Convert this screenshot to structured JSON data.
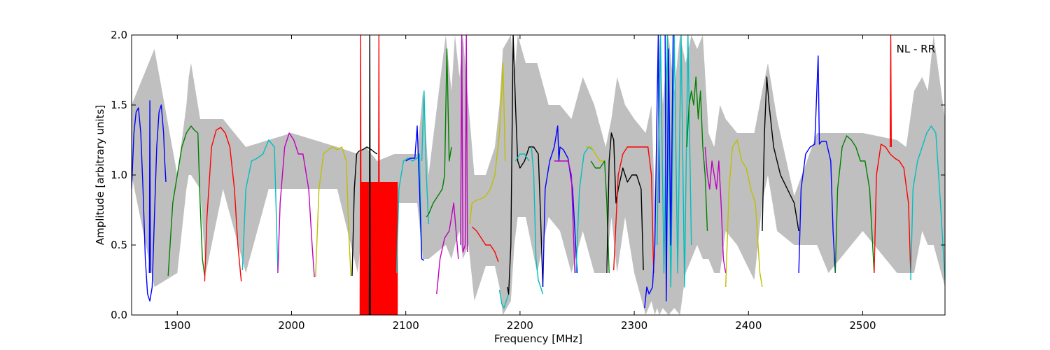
{
  "chart_data": {
    "type": "line",
    "annotation": "NL - RR",
    "xlabel": "Frequency [MHz]",
    "ylabel": "Amplitude [arbitrary units]",
    "xlim": [
      1860,
      2572
    ],
    "ylim": [
      0,
      2.0
    ],
    "xticks": [
      1900,
      2000,
      2100,
      2200,
      2300,
      2400,
      2500
    ],
    "xtick_labels": [
      "1900",
      "2000",
      "2100",
      "2200",
      "2300",
      "2400",
      "2500"
    ],
    "yticks": [
      0.0,
      0.5,
      1.0,
      1.5,
      2.0
    ],
    "ytick_labels": [
      "0.0",
      "0.5",
      "1.0",
      "1.5",
      "2.0"
    ],
    "grid": false,
    "colors": {
      "background_band": "#bfbfbf",
      "blue": "#0000ff",
      "green": "#008000",
      "red": "#ff0000",
      "cyan": "#00bfbf",
      "magenta": "#bf00bf",
      "yellow": "#bfbf00",
      "black": "#000000"
    },
    "background_band": {
      "color": "#bfbfbf",
      "x": [
        1860,
        1880,
        1900,
        1908,
        1910,
        1912,
        1920,
        1925,
        1940,
        1960,
        1980,
        2000,
        2040,
        2058,
        2065,
        2075,
        2090,
        2100,
        2110,
        2115,
        2120,
        2135,
        2140,
        2143,
        2147,
        2150,
        2155,
        2160,
        2170,
        2178,
        2182,
        2185,
        2192,
        2195,
        2198,
        2205,
        2215,
        2225,
        2235,
        2245,
        2255,
        2265,
        2275,
        2280,
        2285,
        2292,
        2300,
        2310,
        2315,
        2318,
        2320,
        2322,
        2325,
        2330,
        2335,
        2340,
        2345,
        2350,
        2355,
        2360,
        2365,
        2370,
        2375,
        2380,
        2390,
        2405,
        2412,
        2417,
        2425,
        2440,
        2460,
        2470,
        2500,
        2530,
        2538,
        2545,
        2552,
        2557,
        2562,
        2572
      ],
      "upper": [
        1.5,
        1.9,
        1.0,
        1.5,
        1.7,
        1.8,
        1.4,
        1.4,
        1.4,
        1.2,
        1.25,
        1.3,
        1.2,
        1.15,
        1.2,
        1.1,
        1.15,
        1.15,
        1.15,
        1.6,
        1.0,
        2.0,
        1.6,
        2.0,
        1.7,
        2.0,
        1.5,
        1.0,
        1.0,
        1.2,
        1.5,
        1.9,
        2.0,
        1.7,
        2.0,
        1.8,
        1.8,
        1.5,
        1.5,
        1.4,
        1.7,
        1.5,
        1.2,
        1.4,
        1.7,
        1.5,
        1.4,
        1.3,
        1.5,
        0.8,
        1.2,
        2.0,
        1.5,
        2.0,
        1.6,
        2.0,
        1.8,
        2.0,
        1.9,
        2.0,
        1.3,
        1.2,
        1.5,
        1.4,
        1.3,
        1.3,
        1.6,
        1.8,
        1.4,
        0.85,
        1.3,
        1.3,
        1.3,
        1.25,
        1.2,
        1.6,
        1.7,
        1.6,
        2.0,
        1.4
      ],
      "lower": [
        1.0,
        0.2,
        0.3,
        0.9,
        1.0,
        1.0,
        0.9,
        0.3,
        0.9,
        0.3,
        0.9,
        0.9,
        0.9,
        0.3,
        0.9,
        0.0,
        0.8,
        0.8,
        0.8,
        0.4,
        0.4,
        0.5,
        0.4,
        0.5,
        0.6,
        0.4,
        0.5,
        0.1,
        0.35,
        0.35,
        0.2,
        0.0,
        0.1,
        0.5,
        0.7,
        0.7,
        0.3,
        0.7,
        0.6,
        0.3,
        0.6,
        0.3,
        0.3,
        0.7,
        0.3,
        0.7,
        0.3,
        0.0,
        0.1,
        0.0,
        0.05,
        0.0,
        0.05,
        0.0,
        0.05,
        0.0,
        0.3,
        0.4,
        0.5,
        0.4,
        0.4,
        0.3,
        0.3,
        0.6,
        0.5,
        0.25,
        0.8,
        1.0,
        0.6,
        0.5,
        0.5,
        0.3,
        0.6,
        0.3,
        0.3,
        0.3,
        0.6,
        0.5,
        0.5,
        0.2
      ]
    },
    "series": [
      {
        "color": "#0000ff",
        "x": [
          1860,
          1862,
          1864,
          1866,
          1868,
          1870,
          1872,
          1874,
          1876,
          1878,
          1880,
          1882,
          1884,
          1886,
          1888,
          1889,
          1890
        ],
        "y": [
          0.9,
          1.3,
          1.45,
          1.48,
          1.3,
          0.9,
          0.4,
          0.15,
          0.1,
          0.2,
          0.7,
          1.2,
          1.45,
          1.5,
          1.3,
          1.1,
          0.95
        ]
      },
      {
        "color": "#0000ff",
        "x": [
          1875.5,
          1876,
          1876.5
        ],
        "y": [
          0.3,
          1.53,
          0.3
        ]
      },
      {
        "color": "#008000",
        "x": [
          1892,
          1896,
          1900,
          1904,
          1908,
          1912,
          1915,
          1918,
          1920,
          1922,
          1924
        ],
        "y": [
          0.28,
          0.8,
          1.0,
          1.2,
          1.3,
          1.35,
          1.32,
          1.3,
          0.8,
          0.4,
          0.28
        ]
      },
      {
        "color": "#ff0000",
        "x": [
          1924,
          1926,
          1930,
          1934,
          1938,
          1942,
          1946,
          1950,
          1953,
          1956
        ],
        "y": [
          0.24,
          0.7,
          1.2,
          1.32,
          1.34,
          1.3,
          1.2,
          0.9,
          0.5,
          0.24
        ]
      },
      {
        "color": "#00bfbf",
        "x": [
          1957,
          1960,
          1965,
          1970,
          1975,
          1980,
          1985,
          1988
        ],
        "y": [
          0.32,
          0.9,
          1.1,
          1.12,
          1.15,
          1.25,
          1.2,
          0.32
        ]
      },
      {
        "color": "#bf00bf",
        "x": [
          1988,
          1990,
          1994,
          1998,
          2002,
          2006,
          2010,
          2015,
          2018,
          2020
        ],
        "y": [
          0.3,
          0.8,
          1.2,
          1.3,
          1.25,
          1.15,
          1.15,
          0.9,
          0.5,
          0.27
        ]
      },
      {
        "color": "#bfbf00",
        "x": [
          2021,
          2024,
          2028,
          2032,
          2036,
          2040,
          2044,
          2048,
          2050,
          2052
        ],
        "y": [
          0.27,
          0.9,
          1.15,
          1.18,
          1.2,
          1.18,
          1.2,
          1.1,
          0.6,
          0.28
        ]
      },
      {
        "color": "#000000",
        "x": [
          2053,
          2055,
          2057,
          2059,
          2062,
          2066,
          2070,
          2073,
          2075
        ],
        "y": [
          0.28,
          0.9,
          1.15,
          1.17,
          1.18,
          1.2,
          1.18,
          1.16,
          1.15
        ]
      },
      {
        "color": "#ff0000",
        "x": [
          2060,
          2060.5,
          2061
        ],
        "y": [
          0.0,
          2.0,
          0.0
        ]
      },
      {
        "color": "#000000",
        "x": [
          2068,
          2068.5,
          2069
        ],
        "y": [
          0.0,
          2.0,
          0.0
        ]
      },
      {
        "color": "#ff0000",
        "x": [
          2076,
          2076.5,
          2077
        ],
        "y": [
          0.0,
          2.0,
          0.0
        ]
      },
      {
        "color": "#00bfbf",
        "x": [
          2092,
          2094,
          2098,
          2102,
          2106,
          2110,
          2112,
          2114
        ],
        "y": [
          0.3,
          0.9,
          1.1,
          1.12,
          1.1,
          1.12,
          1.15,
          0.4
        ]
      },
      {
        "color": "#0000ff",
        "x": [
          2100,
          2104,
          2108,
          2110,
          2112,
          2114,
          2116
        ],
        "y": [
          1.1,
          1.12,
          1.12,
          1.35,
          0.9,
          0.4,
          0.39
        ]
      },
      {
        "color": "#00bfbf",
        "x": [
          2114,
          2116,
          2118,
          2120
        ],
        "y": [
          1.1,
          1.6,
          1.0,
          0.65
        ]
      },
      {
        "color": "#008000",
        "x": [
          2118,
          2120,
          2124,
          2128,
          2132,
          2134,
          2136,
          2138,
          2140
        ],
        "y": [
          0.7,
          0.72,
          0.8,
          0.85,
          0.9,
          1.0,
          1.9,
          1.1,
          1.2
        ]
      },
      {
        "color": "#bf00bf",
        "x": [
          2127,
          2130,
          2134,
          2138,
          2142,
          2144,
          2146
        ],
        "y": [
          0.15,
          0.4,
          0.55,
          0.6,
          0.8,
          0.6,
          0.4
        ]
      },
      {
        "color": "#bf00bf",
        "x": [
          2148,
          2149,
          2150,
          2152,
          2153,
          2154
        ],
        "y": [
          0.5,
          2.0,
          0.45,
          0.5,
          2.0,
          0.45
        ]
      },
      {
        "color": "#bfbf00",
        "x": [
          2156,
          2158,
          2162,
          2166,
          2170,
          2174,
          2178,
          2182,
          2184,
          2185,
          2186,
          2187
        ],
        "y": [
          0.65,
          0.8,
          0.82,
          0.83,
          0.85,
          0.9,
          1.0,
          1.3,
          1.6,
          1.8,
          1.5,
          1.1
        ]
      },
      {
        "color": "#ff0000",
        "x": [
          2158,
          2162,
          2166,
          2170,
          2174,
          2178,
          2181
        ],
        "y": [
          0.63,
          0.6,
          0.55,
          0.5,
          0.5,
          0.45,
          0.38
        ]
      },
      {
        "color": "#00bfbf",
        "x": [
          2182,
          2184,
          2186,
          2188,
          2190
        ],
        "y": [
          0.18,
          0.08,
          0.05,
          0.1,
          0.15
        ]
      },
      {
        "color": "#000000",
        "x": [
          2189,
          2190,
          2192,
          2194,
          2196,
          2198,
          2200,
          2204,
          2208,
          2212,
          2216,
          2218,
          2220
        ],
        "y": [
          0.2,
          0.15,
          0.5,
          2.0,
          1.5,
          1.1,
          1.05,
          1.1,
          1.2,
          1.2,
          1.15,
          0.7,
          0.2
        ]
      },
      {
        "color": "#00bfbf",
        "x": [
          2196,
          2200,
          2204,
          2208
        ],
        "y": [
          1.1,
          1.15,
          1.15,
          1.1
        ]
      },
      {
        "color": "#00bfbf",
        "x": [
          2210,
          2212,
          2214,
          2216,
          2218,
          2220
        ],
        "y": [
          1.2,
          1.0,
          0.4,
          0.25,
          0.2,
          0.15
        ]
      },
      {
        "color": "#0000ff",
        "x": [
          2220,
          2222,
          2226,
          2230,
          2233,
          2234,
          2235,
          2238,
          2242,
          2246,
          2250
        ],
        "y": [
          0.2,
          0.9,
          1.1,
          1.2,
          1.35,
          1.1,
          1.2,
          1.18,
          1.12,
          0.9,
          0.3
        ]
      },
      {
        "color": "#bf00bf",
        "x": [
          2230,
          2234,
          2238,
          2242,
          2245,
          2248
        ],
        "y": [
          1.1,
          1.1,
          1.1,
          1.1,
          1.0,
          0.3
        ]
      },
      {
        "color": "#00bfbf",
        "x": [
          2249,
          2252,
          2256,
          2260,
          2264
        ],
        "y": [
          0.3,
          0.9,
          1.15,
          1.2,
          1.18
        ]
      },
      {
        "color": "#bfbf00",
        "x": [
          2258,
          2262,
          2266,
          2270,
          2274
        ],
        "y": [
          1.2,
          1.2,
          1.15,
          1.1,
          1.1
        ]
      },
      {
        "color": "#008000",
        "x": [
          2262,
          2266,
          2270,
          2274,
          2276,
          2278
        ],
        "y": [
          1.1,
          1.05,
          1.05,
          1.1,
          0.8,
          0.3
        ]
      },
      {
        "color": "#000000",
        "x": [
          2276,
          2278,
          2280,
          2282,
          2284,
          2286,
          2290,
          2294,
          2298,
          2302,
          2306,
          2308
        ],
        "y": [
          0.3,
          1.1,
          1.3,
          1.25,
          0.8,
          0.9,
          1.05,
          0.95,
          1.0,
          1.0,
          0.9,
          0.32
        ]
      },
      {
        "color": "#ff0000",
        "x": [
          2282,
          2286,
          2290,
          2294,
          2298,
          2304,
          2308,
          2312,
          2315,
          2317
        ],
        "y": [
          0.32,
          1.0,
          1.15,
          1.2,
          1.2,
          1.2,
          1.2,
          1.2,
          1.0,
          0.3
        ]
      },
      {
        "color": "#0000ff",
        "x": [
          2309,
          2311,
          2313,
          2316,
          2318,
          2320,
          2321,
          2322
        ],
        "y": [
          0.05,
          0.2,
          0.15,
          0.2,
          0.5,
          1.5,
          2.0,
          0.8
        ]
      },
      {
        "color": "#00bfbf",
        "x": [
          2320,
          2323,
          2326,
          2329,
          2332,
          2335,
          2338,
          2341,
          2344,
          2347,
          2350
        ],
        "y": [
          0.5,
          2.0,
          0.3,
          2.0,
          0.2,
          2.0,
          0.3,
          2.0,
          0.2,
          2.0,
          0.5
        ]
      },
      {
        "color": "#0000ff",
        "x": [
          2327,
          2328,
          2330,
          2332,
          2334
        ],
        "y": [
          2.0,
          0.1,
          1.9,
          0.5,
          2.0
        ]
      },
      {
        "color": "#008000",
        "x": [
          2346,
          2348,
          2350,
          2352,
          2354,
          2356,
          2358,
          2360,
          2362,
          2364
        ],
        "y": [
          1.2,
          1.5,
          1.6,
          1.5,
          1.7,
          1.4,
          1.6,
          1.2,
          1.0,
          0.6
        ]
      },
      {
        "color": "#bf00bf",
        "x": [
          2362,
          2364,
          2366,
          2368,
          2370,
          2372,
          2374,
          2376,
          2378,
          2380
        ],
        "y": [
          1.2,
          1.0,
          0.9,
          1.1,
          1.0,
          0.9,
          1.1,
          0.8,
          0.4,
          0.3
        ]
      },
      {
        "color": "#bfbf00",
        "x": [
          2380,
          2383,
          2386,
          2390,
          2394,
          2398,
          2402,
          2406,
          2410,
          2412
        ],
        "y": [
          0.2,
          0.9,
          1.2,
          1.25,
          1.1,
          1.05,
          0.9,
          0.8,
          0.3,
          0.2
        ]
      },
      {
        "color": "#000000",
        "x": [
          2412,
          2414,
          2416,
          2418,
          2422,
          2428,
          2434,
          2440,
          2444
        ],
        "y": [
          0.6,
          1.3,
          1.7,
          1.5,
          1.2,
          1.0,
          0.9,
          0.8,
          0.6
        ]
      },
      {
        "color": "#0000ff",
        "x": [
          2444,
          2446,
          2450,
          2454,
          2458,
          2461,
          2462,
          2464,
          2468,
          2472,
          2474,
          2476
        ],
        "y": [
          0.3,
          0.9,
          1.15,
          1.2,
          1.22,
          1.85,
          1.22,
          1.24,
          1.24,
          1.1,
          0.6,
          0.3
        ]
      },
      {
        "color": "#008000",
        "x": [
          2476,
          2478,
          2482,
          2486,
          2490,
          2494,
          2498,
          2502,
          2506,
          2510
        ],
        "y": [
          0.3,
          0.9,
          1.2,
          1.28,
          1.25,
          1.2,
          1.1,
          1.1,
          0.9,
          0.3
        ]
      },
      {
        "color": "#ff0000",
        "x": [
          2510,
          2512,
          2516,
          2520,
          2524,
          2528,
          2532,
          2536,
          2540,
          2542
        ],
        "y": [
          0.3,
          1.0,
          1.22,
          1.2,
          1.15,
          1.12,
          1.1,
          1.05,
          0.8,
          0.3
        ]
      },
      {
        "color": "#ff0000",
        "x": [
          2524,
          2524.5,
          2525
        ],
        "y": [
          1.2,
          2.0,
          1.2
        ]
      },
      {
        "color": "#00bfbf",
        "x": [
          2542,
          2544,
          2548,
          2552,
          2556,
          2560,
          2564,
          2568,
          2572
        ],
        "y": [
          0.25,
          0.9,
          1.1,
          1.2,
          1.3,
          1.35,
          1.3,
          0.8,
          0.25
        ]
      }
    ],
    "filled_bands": [
      {
        "color": "#ff0000",
        "x_range": [
          2060,
          2093
        ],
        "y_range": [
          0.0,
          0.95
        ]
      }
    ]
  }
}
